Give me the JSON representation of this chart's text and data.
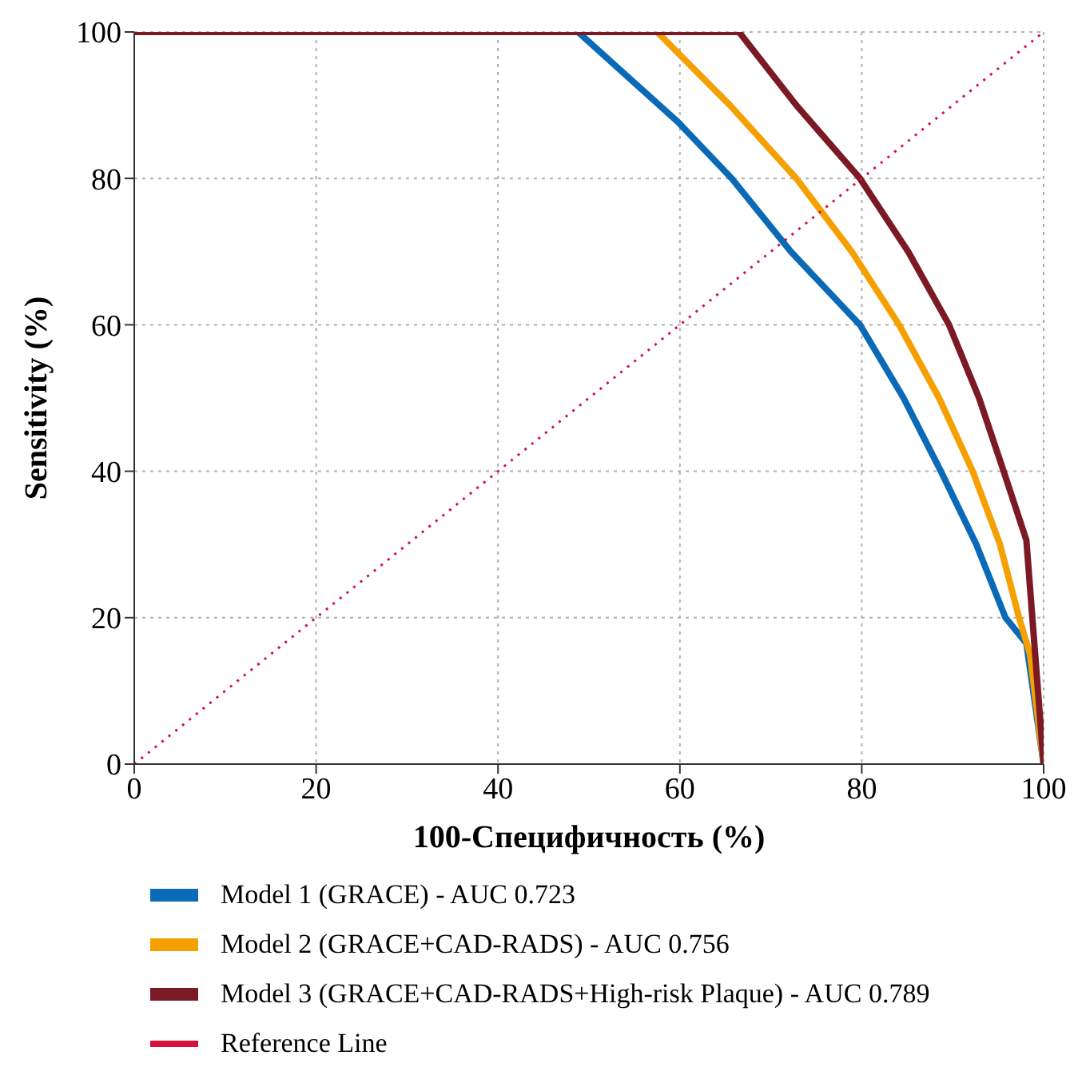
{
  "chart_data": {
    "type": "line",
    "xlabel": "100-Специфичность (%)",
    "ylabel": "Sensitivity (%)",
    "xlim": [
      0,
      100
    ],
    "ylim": [
      0,
      100
    ],
    "xticks": [
      0,
      20,
      40,
      60,
      80,
      100
    ],
    "yticks": [
      0,
      20,
      40,
      60,
      80,
      100
    ],
    "grid": true,
    "legend": "bottom",
    "series": [
      {
        "name": "Model 1 (GRACE) - AUC 0.723",
        "color": "#0a6ab8",
        "x": [
          0,
          48.8,
          59.8,
          65.7,
          72.2,
          79.8,
          84.6,
          88.7,
          92.6,
          95.8,
          98.1,
          100
        ],
        "values": [
          100,
          100,
          87.7,
          80,
          70,
          60,
          50,
          40,
          30,
          20,
          16.5,
          0
        ]
      },
      {
        "name": "Model 2 (GRACE+CAD-RADS) - AUC 0.756",
        "color": "#f5a000",
        "x": [
          0,
          57.5,
          65.5,
          72.8,
          78.9,
          84.1,
          88.5,
          92.2,
          95.2,
          97.3,
          98.5,
          100
        ],
        "values": [
          100,
          100,
          90,
          80,
          70,
          60,
          50,
          40,
          30,
          20,
          15,
          0
        ]
      },
      {
        "name": "Model 3 (GRACE+CAD-RADS+High-risk Plaque) - AUC 0.789",
        "color": "#7b1a24",
        "x": [
          0,
          66.5,
          72.8,
          79.8,
          85.1,
          89.6,
          92.9,
          95.6,
          98.1,
          100
        ],
        "values": [
          100,
          100,
          90,
          80,
          70,
          60,
          50,
          40,
          30.6,
          0
        ]
      },
      {
        "name": "Reference Line",
        "color": "#d6103c",
        "line_style": "dotted",
        "x": [
          0,
          100
        ],
        "values": [
          0,
          100
        ]
      }
    ]
  }
}
